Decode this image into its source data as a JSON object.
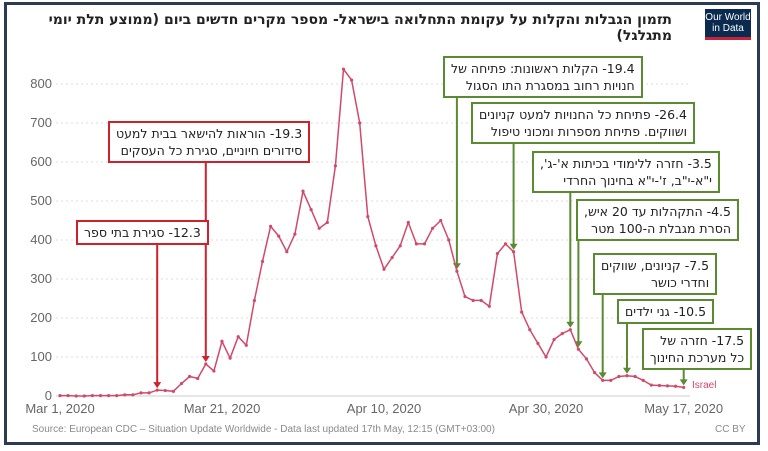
{
  "header": {
    "title": "תזמון הגבלות והקלות על עקומת התחלואה בישראל- מספר מקרים חדשים ביום (ממוצע תלת יומי מתגלגל)",
    "logo_line1": "Our World",
    "logo_line2": "in Data"
  },
  "footer": {
    "source": "Source: European CDC – Situation Update Worldwide - Data last updated 17th May, 12:15 (GMT+03:00)",
    "license": "CC BY"
  },
  "series_label": "Israel",
  "colors": {
    "line": "#d04a6a",
    "restriction": "#d0202a",
    "relaxation": "#5b8a32",
    "logo_bg": "#0b2a50",
    "frame": "#2b3a55"
  },
  "annotations": [
    {
      "id": "a1",
      "type": "restriction",
      "line1": "12.3- סגירת בתי ספר",
      "line2": "",
      "date_index": 12
    },
    {
      "id": "a2",
      "type": "restriction",
      "line1": "19.3- הוראות להישאר בבית למעט",
      "line2": "סידורים חיוניים, סגירת כל העסקים",
      "date_index": 18
    },
    {
      "id": "a3",
      "type": "relaxation",
      "line1": "19.4- הקלות ראשונות: פתיחה של",
      "line2": "חנויות רחוב במסגרת התו הסגול",
      "date_index": 49
    },
    {
      "id": "a4",
      "type": "relaxation",
      "line1": "26.4- פתיחת כל החנויות למעט קניונים",
      "line2": "ושווקים. פתיחת מספרות ומכוני טיפול",
      "date_index": 56
    },
    {
      "id": "a5",
      "type": "relaxation",
      "line1": "3.5- חזרה ללימודי בכיתות א'-ג',",
      "line2": "י\"א-י\"ב, ז'-י\"א בחינוך החרדי",
      "date_index": 63
    },
    {
      "id": "a6",
      "type": "relaxation",
      "line1": "4.5- התקהלות עד 20 איש,",
      "line2": "הסרת מגבלת ה-100 מטר",
      "date_index": 64
    },
    {
      "id": "a7",
      "type": "relaxation",
      "line1": "7.5- קניונים, שווקים",
      "line2": "וחדרי כושר",
      "date_index": 67
    },
    {
      "id": "a8",
      "type": "relaxation",
      "line1": "10.5- גני ילדים",
      "line2": "",
      "date_index": 70
    },
    {
      "id": "a9",
      "type": "relaxation",
      "line1": "17.5- חזרה של",
      "line2": "כל מערכת החינוך",
      "date_index": 77
    }
  ],
  "chart_data": {
    "type": "line",
    "title": "תזמון הגבלות והקלות על עקומת התחלואה בישראל- מספר מקרים חדשים ביום (ממוצע תלת יומי מתגלגל)",
    "xlabel": "",
    "ylabel": "",
    "x_start": "Mar 1, 2020",
    "x_end": "May 17, 2020",
    "x_tick_labels": [
      "Mar 1, 2020",
      "Mar 21, 2020",
      "Apr 10, 2020",
      "Apr 30, 2020",
      "May 17, 2020"
    ],
    "x_tick_indices": [
      0,
      20,
      40,
      60,
      77
    ],
    "y_tick_labels": [
      "0",
      "100",
      "200",
      "300",
      "400",
      "500",
      "600",
      "700",
      "800"
    ],
    "ylim": [
      0,
      850
    ],
    "grid": true,
    "legend": "inline label at line end",
    "series": [
      {
        "name": "Israel",
        "values": [
          1,
          1,
          0,
          0,
          1,
          1,
          1,
          1,
          3,
          3,
          8,
          8,
          15,
          14,
          12,
          32,
          50,
          45,
          82,
          64,
          140,
          97,
          152,
          130,
          245,
          345,
          435,
          410,
          370,
          415,
          525,
          478,
          430,
          445,
          590,
          838,
          810,
          700,
          460,
          385,
          325,
          355,
          385,
          445,
          390,
          390,
          430,
          450,
          400,
          320,
          255,
          245,
          245,
          230,
          365,
          390,
          370,
          215,
          170,
          135,
          100,
          145,
          160,
          170,
          120,
          95,
          60,
          40,
          40,
          50,
          52,
          50,
          40,
          28,
          27,
          26,
          25,
          22
        ]
      }
    ]
  }
}
